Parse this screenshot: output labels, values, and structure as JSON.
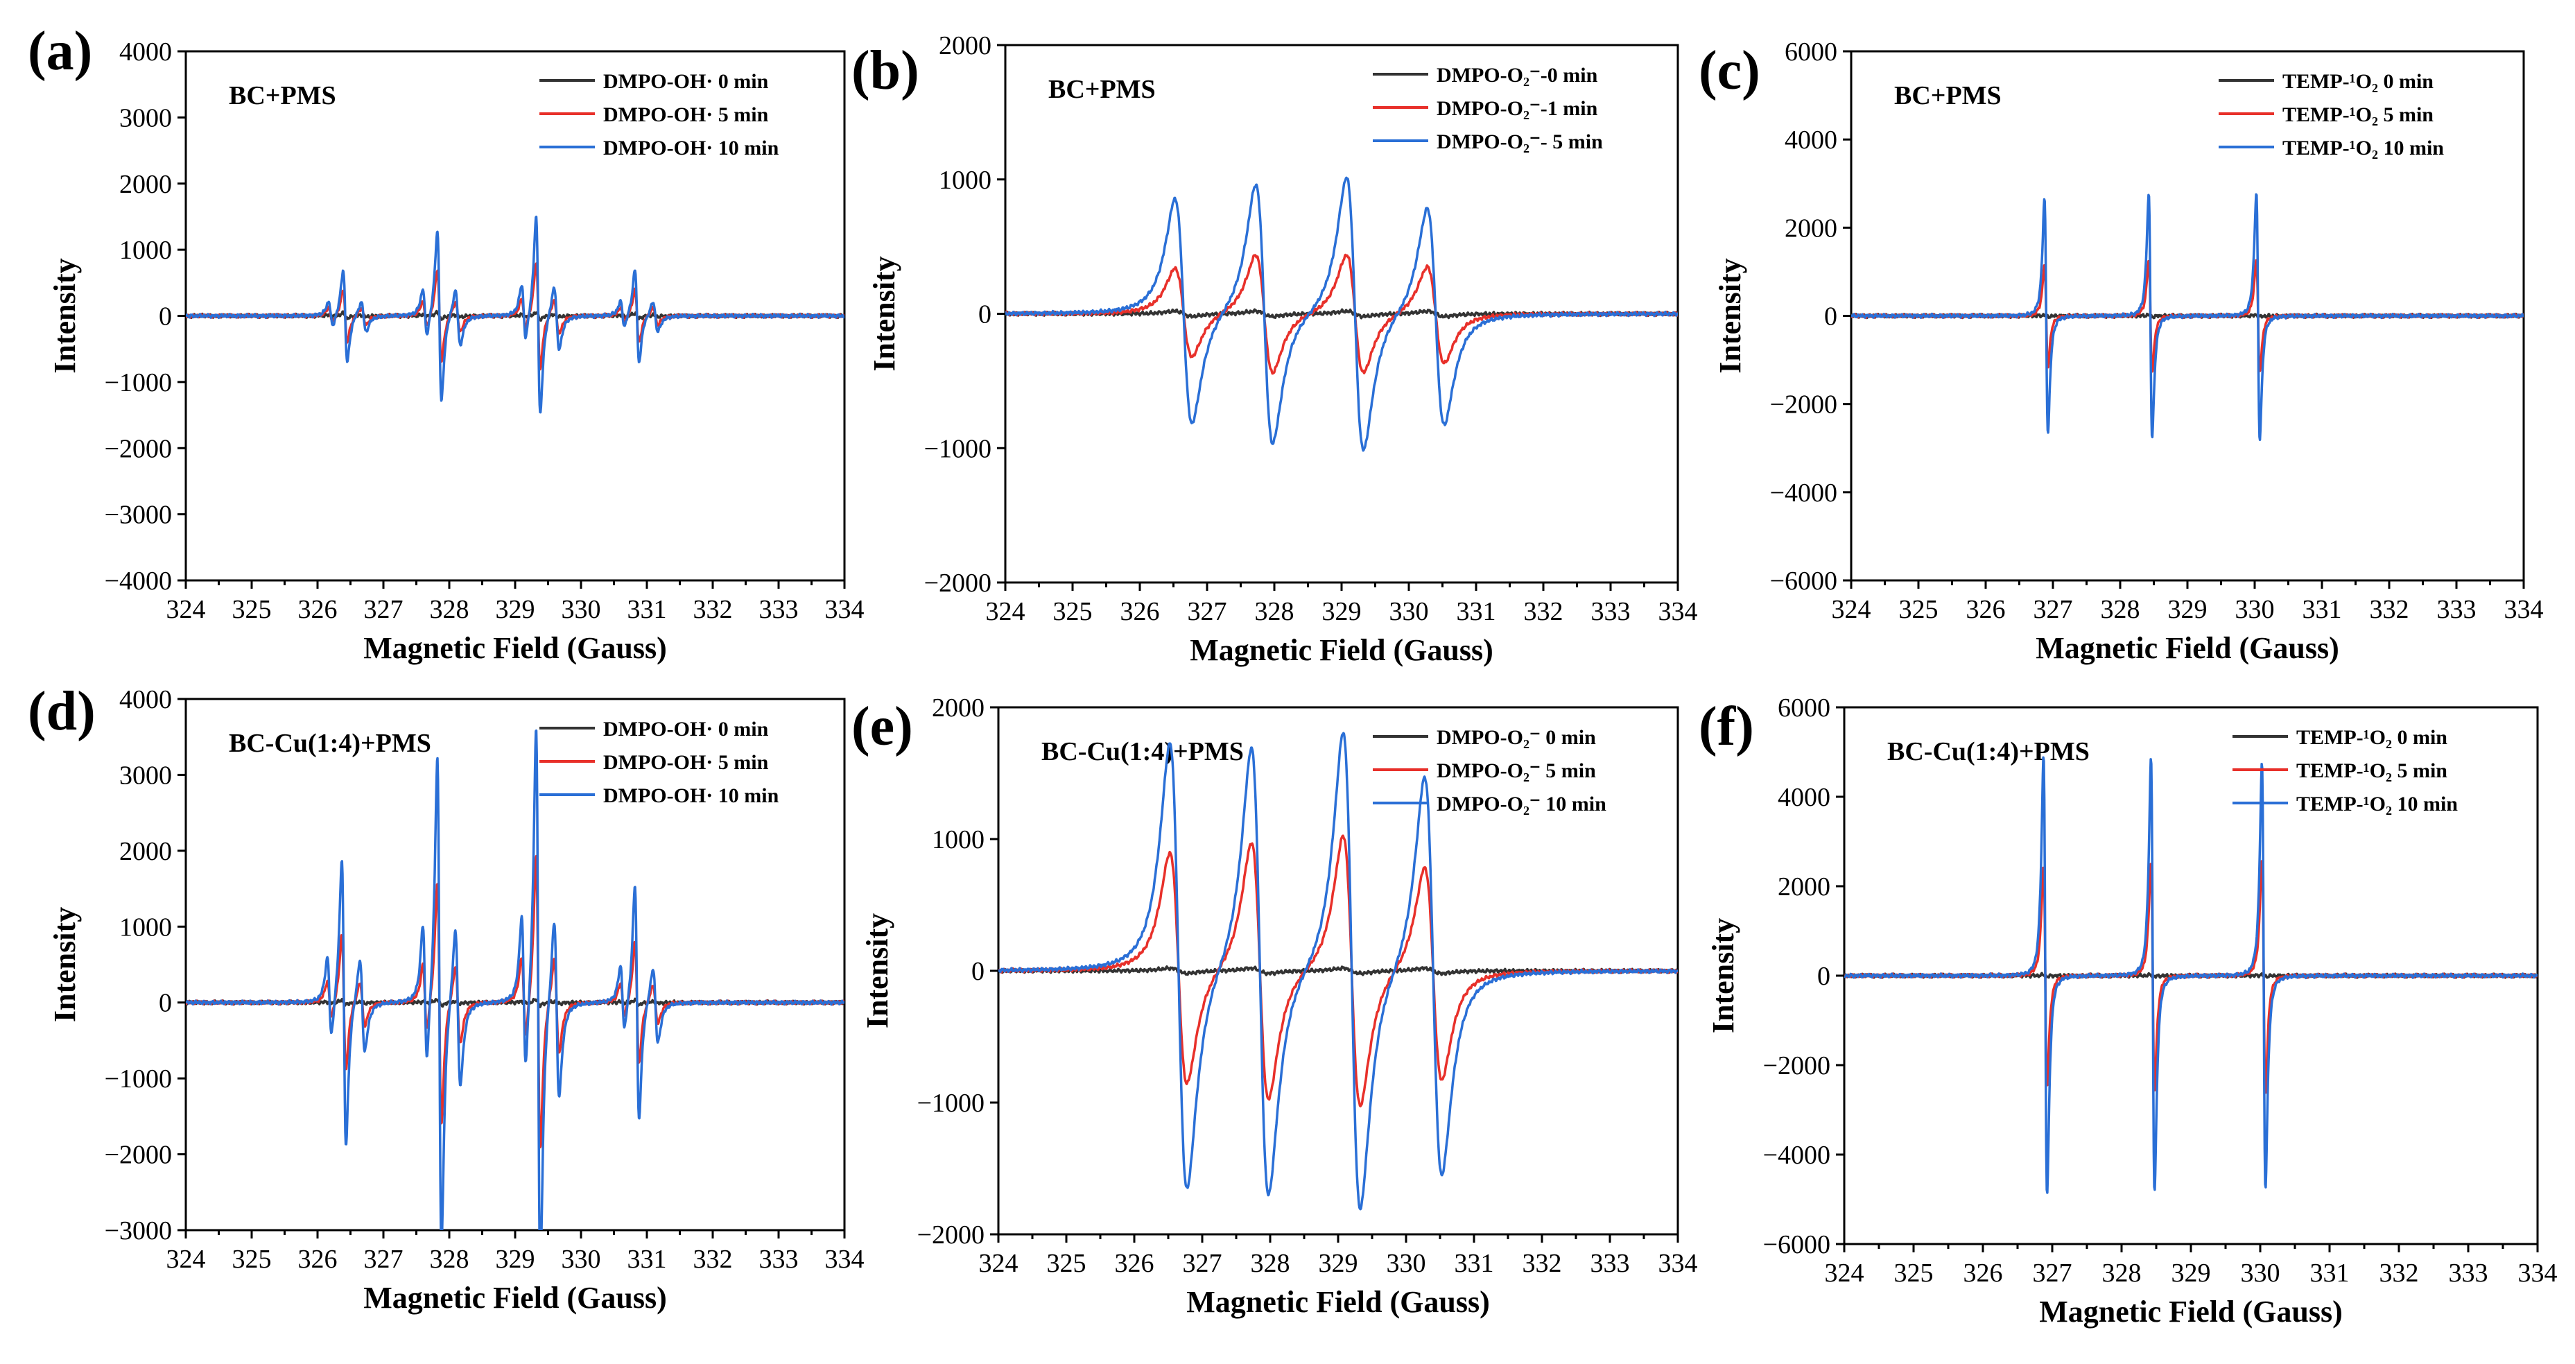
{
  "chart_data": [
    {
      "panel": "(a)",
      "type": "line",
      "title": "BC+PMS",
      "xlabel": "Magnetic Field (Gauss)",
      "ylabel": "Intensity",
      "xlim": [
        324,
        334
      ],
      "ylim": [
        -4000,
        4000
      ],
      "xticks": [
        324,
        325,
        326,
        327,
        328,
        329,
        330,
        331,
        332,
        333,
        334
      ],
      "yticks": [
        -4000,
        -3000,
        -2000,
        -1000,
        0,
        1000,
        2000,
        3000,
        4000
      ],
      "spectrum": "dmpo_oh",
      "peaks": [
        326.42,
        327.85,
        329.35,
        330.85
      ],
      "legend": [
        "DMPO-OH· 0 min",
        "DMPO-OH· 5 min",
        "DMPO-OH· 10 min"
      ],
      "series": [
        {
          "name": "DMPO-OH· 0 min",
          "color": "#333333",
          "peak_amplitudes": [
            40,
            50,
            50,
            40
          ]
        },
        {
          "name": "DMPO-OH· 5 min",
          "color": "#e8302a",
          "peak_amplitudes": [
            400,
            700,
            800,
            400
          ]
        },
        {
          "name": "DMPO-OH· 10 min",
          "color": "#2a6fd6",
          "peak_amplitudes": [
            700,
            1300,
            1500,
            700
          ]
        }
      ]
    },
    {
      "panel": "(b)",
      "type": "line",
      "title": "BC+PMS",
      "xlabel": "Magnetic Field (Gauss)",
      "ylabel": "Intensity",
      "xlim": [
        324,
        334
      ],
      "ylim": [
        -2000,
        2000
      ],
      "xticks": [
        324,
        325,
        326,
        327,
        328,
        329,
        330,
        331,
        332,
        333,
        334
      ],
      "yticks": [
        -2000,
        -1000,
        0,
        1000,
        2000
      ],
      "spectrum": "dmpo_o2",
      "peaks": [
        326.65,
        327.85,
        329.2,
        330.4
      ],
      "legend": [
        "DMPO-O₂⁻-0 min",
        "DMPO-O₂⁻-1 min",
        "DMPO-O₂⁻- 5 min"
      ],
      "series": [
        {
          "name": "DMPO-O₂⁻-0 min",
          "color": "#333333",
          "peak_amplitudes": [
            20,
            20,
            20,
            20
          ]
        },
        {
          "name": "DMPO-O₂⁻-1 min",
          "color": "#e8302a",
          "peak_amplitudes": [
            330,
            440,
            440,
            360
          ]
        },
        {
          "name": "DMPO-O₂⁻- 5 min",
          "color": "#2a6fd6",
          "peak_amplitudes": [
            840,
            970,
            1020,
            810
          ]
        }
      ]
    },
    {
      "panel": "(c)",
      "type": "line",
      "title": "BC+PMS",
      "xlabel": "Magnetic Field (Gauss)",
      "ylabel": "Intensity",
      "xlim": [
        324,
        334
      ],
      "ylim": [
        -6000,
        6000
      ],
      "xticks": [
        324,
        325,
        326,
        327,
        328,
        329,
        330,
        331,
        332,
        333,
        334
      ],
      "yticks": [
        -6000,
        -4000,
        -2000,
        0,
        2000,
        4000,
        6000
      ],
      "spectrum": "temp",
      "peaks": [
        326.9,
        328.45,
        330.05
      ],
      "legend": [
        "TEMP-¹O₂ 0 min",
        "TEMP-¹O₂ 5 min",
        "TEMP-¹O₂ 10 min"
      ],
      "series": [
        {
          "name": "TEMP-¹O₂ 0 min",
          "color": "#333333",
          "peak_amplitudes": [
            20,
            20,
            20
          ]
        },
        {
          "name": "TEMP-¹O₂ 5 min",
          "color": "#e8302a",
          "peak_amplitudes": [
            1150,
            1250,
            1280
          ]
        },
        {
          "name": "TEMP-¹O₂ 10 min",
          "color": "#2a6fd6",
          "peak_amplitudes": [
            2650,
            2750,
            2800
          ]
        }
      ]
    },
    {
      "panel": "(d)",
      "type": "line",
      "title": "BC-Cu(1:4)+PMS",
      "xlabel": "Magnetic Field (Gauss)",
      "ylabel": "Intensity",
      "xlim": [
        324,
        334
      ],
      "ylim": [
        -3000,
        4000
      ],
      "xticks": [
        324,
        325,
        326,
        327,
        328,
        329,
        330,
        331,
        332,
        333,
        334
      ],
      "yticks": [
        -3000,
        -2000,
        -1000,
        0,
        1000,
        2000,
        3000,
        4000
      ],
      "spectrum": "dmpo_oh",
      "peaks": [
        326.4,
        327.85,
        329.35,
        330.85
      ],
      "legend": [
        "DMPO-OH· 0 min",
        "DMPO-OH· 5 min",
        "DMPO-OH· 10 min"
      ],
      "series": [
        {
          "name": "DMPO-OH· 0 min",
          "color": "#333333",
          "peak_amplitudes": [
            30,
            40,
            40,
            30
          ]
        },
        {
          "name": "DMPO-OH· 5 min",
          "color": "#e8302a",
          "peak_amplitudes": [
            900,
            1600,
            1950,
            800
          ]
        },
        {
          "name": "DMPO-OH· 10 min",
          "color": "#2a6fd6",
          "peak_amplitudes": [
            1900,
            3250,
            3650,
            1550
          ]
        }
      ]
    },
    {
      "panel": "(e)",
      "type": "line",
      "title": "BC-Cu(1:4)+PMS",
      "xlabel": "Magnetic Field (Gauss)",
      "ylabel": "Intensity",
      "xlim": [
        324,
        334
      ],
      "ylim": [
        -2000,
        2000
      ],
      "xticks": [
        324,
        325,
        326,
        327,
        328,
        329,
        330,
        331,
        332,
        333,
        334
      ],
      "yticks": [
        -2000,
        -1000,
        0,
        1000,
        2000
      ],
      "spectrum": "dmpo_o2",
      "peaks": [
        326.65,
        327.85,
        329.2,
        330.4
      ],
      "legend": [
        "DMPO-O₂⁻ 0 min",
        "DMPO-O₂⁻ 5 min",
        "DMPO-O₂⁻ 10 min"
      ],
      "series": [
        {
          "name": "DMPO-O₂⁻ 0 min",
          "color": "#333333",
          "peak_amplitudes": [
            20,
            20,
            20,
            20
          ]
        },
        {
          "name": "DMPO-O₂⁻ 5 min",
          "color": "#e8302a",
          "peak_amplitudes": [
            880,
            980,
            1030,
            810
          ]
        },
        {
          "name": "DMPO-O₂⁻ 10 min",
          "color": "#2a6fd6",
          "peak_amplitudes": [
            1700,
            1710,
            1820,
            1520
          ]
        }
      ]
    },
    {
      "panel": "(f)",
      "type": "line",
      "title": "BC-Cu(1:4)+PMS",
      "xlabel": "Magnetic Field (Gauss)",
      "ylabel": "Intensity",
      "xlim": [
        324,
        334
      ],
      "ylim": [
        -6000,
        6000
      ],
      "xticks": [
        324,
        325,
        326,
        327,
        328,
        329,
        330,
        331,
        332,
        333,
        334
      ],
      "yticks": [
        -6000,
        -4000,
        -2000,
        0,
        2000,
        4000,
        6000
      ],
      "spectrum": "temp",
      "peaks": [
        326.9,
        328.45,
        330.05
      ],
      "legend": [
        "TEMP-¹O₂ 0 min",
        "TEMP-¹O₂ 5 min",
        "TEMP-¹O₂ 10 min"
      ],
      "series": [
        {
          "name": "TEMP-¹O₂ 0 min",
          "color": "#333333",
          "peak_amplitudes": [
            20,
            20,
            20
          ]
        },
        {
          "name": "TEMP-¹O₂ 5 min",
          "color": "#e8302a",
          "peak_amplitudes": [
            2450,
            2550,
            2600
          ]
        },
        {
          "name": "TEMP-¹O₂ 10 min",
          "color": "#2a6fd6",
          "peak_amplitudes": [
            4900,
            4850,
            4750
          ]
        }
      ]
    }
  ]
}
